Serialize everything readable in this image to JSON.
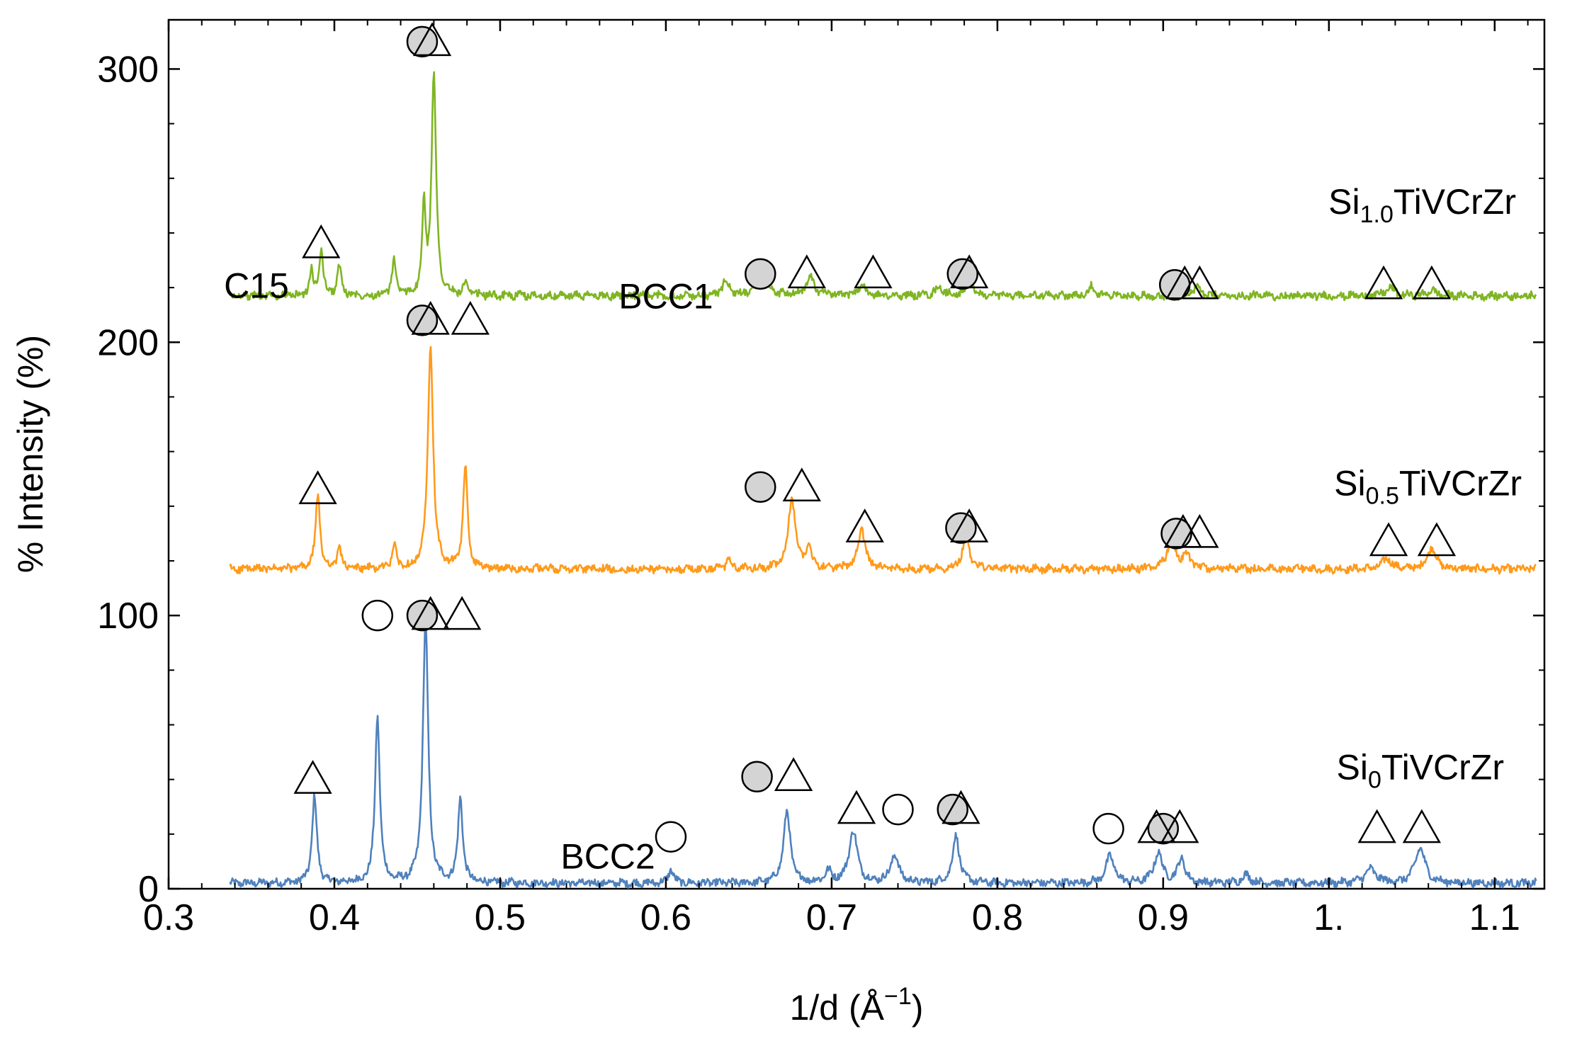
{
  "chart_data": {
    "type": "line",
    "title": "",
    "xlabel": "1/d (Å",
    "xlabel_sup": "−1",
    "xlabel_close": ")",
    "ylabel": "% Intensity (%)",
    "xlim": [
      0.3,
      1.13
    ],
    "ylim": [
      0,
      318
    ],
    "xticks": [
      0.3,
      0.4,
      0.5,
      0.6,
      0.7,
      0.8,
      0.9,
      1.0,
      1.1
    ],
    "xtick_labels": [
      "0.3",
      "0.4",
      "0.5",
      "0.6",
      "0.7",
      "0.8",
      "0.9",
      "1.",
      "1.1"
    ],
    "yticks": [
      0,
      100,
      200,
      300
    ],
    "ytick_labels": [
      "0",
      "100",
      "200",
      "300"
    ],
    "x_range": [
      0.337,
      1.125
    ],
    "grid": false,
    "series": [
      {
        "name": "Si0TiVCrZr",
        "label_main": "Si",
        "label_sub": "0",
        "label_rest": "TiVCrZr",
        "color": "#4f81bd",
        "baseline": 2,
        "peaks": [
          [
            0.388,
            32,
            0.0017
          ],
          [
            0.426,
            61,
            0.0017
          ],
          [
            0.455,
            96,
            0.0019
          ],
          [
            0.476,
            31,
            0.0017
          ],
          [
            0.603,
            5,
            0.0018
          ],
          [
            0.673,
            26,
            0.0025
          ],
          [
            0.698,
            4,
            0.0025
          ],
          [
            0.713,
            19,
            0.003
          ],
          [
            0.738,
            10,
            0.003
          ],
          [
            0.775,
            17,
            0.0025
          ],
          [
            0.868,
            10,
            0.003
          ],
          [
            0.897,
            11,
            0.003
          ],
          [
            0.911,
            9,
            0.0025
          ],
          [
            0.95,
            3,
            0.003
          ],
          [
            1.025,
            5,
            0.004
          ],
          [
            1.055,
            13,
            0.0035
          ]
        ]
      },
      {
        "name": "Si0.5TiVCrZr",
        "label_main": "Si",
        "label_sub": "0.5",
        "label_rest": "TiVCrZr",
        "color": "#ff9a1a",
        "baseline": 117,
        "peaks": [
          [
            0.39,
            27,
            0.0016
          ],
          [
            0.403,
            8,
            0.0014
          ],
          [
            0.436,
            9,
            0.0014
          ],
          [
            0.458,
            81,
            0.0019
          ],
          [
            0.479,
            37,
            0.0016
          ],
          [
            0.638,
            3,
            0.002
          ],
          [
            0.676,
            26,
            0.0025
          ],
          [
            0.686,
            8,
            0.002
          ],
          [
            0.718,
            15,
            0.0025
          ],
          [
            0.781,
            12,
            0.0025
          ],
          [
            0.905,
            11,
            0.003
          ],
          [
            0.914,
            5,
            0.0025
          ],
          [
            1.035,
            4,
            0.003
          ],
          [
            1.062,
            8,
            0.003
          ]
        ]
      },
      {
        "name": "Si1.0TiVCrZr",
        "label_main": "Si",
        "label_sub": "1.0",
        "label_rest": "TiVCrZr",
        "color": "#7fb522",
        "baseline": 217,
        "peaks": [
          [
            0.386,
            9,
            0.0012
          ],
          [
            0.392,
            17,
            0.0014
          ],
          [
            0.403,
            11,
            0.0014
          ],
          [
            0.436,
            13,
            0.0014
          ],
          [
            0.454,
            32,
            0.0012
          ],
          [
            0.46,
            82,
            0.0016
          ],
          [
            0.479,
            4,
            0.0016
          ],
          [
            0.636,
            6,
            0.002
          ],
          [
            0.658,
            7,
            0.004
          ],
          [
            0.687,
            7,
            0.003
          ],
          [
            0.718,
            4,
            0.0025
          ],
          [
            0.765,
            3,
            0.003
          ],
          [
            0.783,
            5,
            0.0025
          ],
          [
            0.857,
            4,
            0.002
          ],
          [
            0.92,
            3,
            0.003
          ],
          [
            1.037,
            3,
            0.003
          ],
          [
            1.062,
            2,
            0.003
          ]
        ]
      }
    ],
    "phase_labels": [
      {
        "text": "C15",
        "x": 0.353,
        "y": 221
      },
      {
        "text": "BCC1",
        "x": 0.6,
        "y": 217
      },
      {
        "text": "BCC2",
        "x": 0.565,
        "y": 12
      }
    ],
    "markers": [
      {
        "type": "triangle",
        "x": 0.392,
        "y": 236
      },
      {
        "type": "circle_gray",
        "x": 0.453,
        "y": 310
      },
      {
        "type": "triangle",
        "x": 0.459,
        "y": 310
      },
      {
        "type": "circle_gray",
        "x": 0.657,
        "y": 225
      },
      {
        "type": "triangle",
        "x": 0.685,
        "y": 225
      },
      {
        "type": "triangle",
        "x": 0.725,
        "y": 225
      },
      {
        "type": "circle_gray",
        "x": 0.779,
        "y": 225
      },
      {
        "type": "triangle",
        "x": 0.783,
        "y": 225
      },
      {
        "type": "circle_gray",
        "x": 0.907,
        "y": 221
      },
      {
        "type": "triangle",
        "x": 0.913,
        "y": 221
      },
      {
        "type": "triangle",
        "x": 0.922,
        "y": 221
      },
      {
        "type": "triangle",
        "x": 1.033,
        "y": 221
      },
      {
        "type": "triangle",
        "x": 1.062,
        "y": 221
      },
      {
        "type": "triangle",
        "x": 0.39,
        "y": 146
      },
      {
        "type": "circle_gray",
        "x": 0.453,
        "y": 208
      },
      {
        "type": "triangle",
        "x": 0.458,
        "y": 208
      },
      {
        "type": "triangle",
        "x": 0.482,
        "y": 208
      },
      {
        "type": "circle_gray",
        "x": 0.657,
        "y": 147
      },
      {
        "type": "triangle",
        "x": 0.682,
        "y": 147
      },
      {
        "type": "triangle",
        "x": 0.72,
        "y": 132
      },
      {
        "type": "circle_gray",
        "x": 0.778,
        "y": 132
      },
      {
        "type": "triangle",
        "x": 0.783,
        "y": 132
      },
      {
        "type": "circle_gray",
        "x": 0.908,
        "y": 130
      },
      {
        "type": "triangle",
        "x": 0.912,
        "y": 130
      },
      {
        "type": "triangle",
        "x": 0.922,
        "y": 130
      },
      {
        "type": "triangle",
        "x": 1.036,
        "y": 127
      },
      {
        "type": "triangle",
        "x": 1.065,
        "y": 127
      },
      {
        "type": "triangle",
        "x": 0.387,
        "y": 40
      },
      {
        "type": "circle_open",
        "x": 0.426,
        "y": 100
      },
      {
        "type": "circle_gray",
        "x": 0.453,
        "y": 100
      },
      {
        "type": "triangle",
        "x": 0.458,
        "y": 100
      },
      {
        "type": "triangle",
        "x": 0.477,
        "y": 100
      },
      {
        "type": "circle_gray",
        "x": 0.655,
        "y": 41
      },
      {
        "type": "triangle",
        "x": 0.677,
        "y": 41
      },
      {
        "type": "triangle",
        "x": 0.715,
        "y": 29
      },
      {
        "type": "circle_open",
        "x": 0.74,
        "y": 29
      },
      {
        "type": "circle_gray",
        "x": 0.773,
        "y": 29
      },
      {
        "type": "triangle",
        "x": 0.778,
        "y": 29
      },
      {
        "type": "circle_open",
        "x": 0.867,
        "y": 22
      },
      {
        "type": "circle_gray",
        "x": 0.9,
        "y": 22
      },
      {
        "type": "triangle",
        "x": 0.896,
        "y": 22
      },
      {
        "type": "triangle",
        "x": 0.91,
        "y": 22
      },
      {
        "type": "triangle",
        "x": 1.029,
        "y": 22
      },
      {
        "type": "triangle",
        "x": 1.056,
        "y": 22
      },
      {
        "type": "circle_open",
        "x": 0.603,
        "y": 19
      }
    ]
  }
}
